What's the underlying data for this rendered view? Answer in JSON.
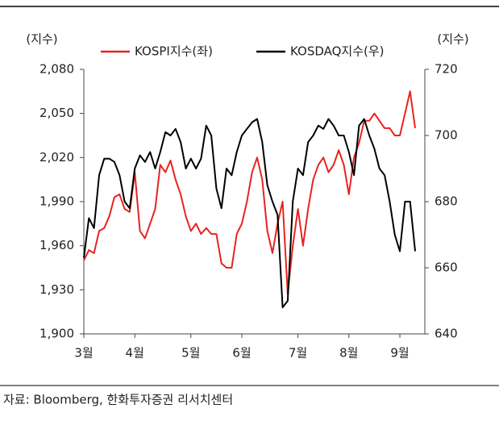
{
  "chart_data": {
    "type": "line",
    "y_label": "(지수)",
    "y2_label": "(지수)",
    "source": "자료: Bloomberg, 한화투자증권 리서치센터",
    "categories": [
      "3월",
      null,
      null,
      null,
      null,
      null,
      null,
      null,
      null,
      null,
      "4월",
      null,
      null,
      null,
      null,
      null,
      null,
      null,
      null,
      null,
      null,
      "5월",
      null,
      null,
      null,
      null,
      null,
      null,
      null,
      null,
      null,
      "6월",
      null,
      null,
      null,
      null,
      null,
      null,
      null,
      null,
      null,
      null,
      "7월",
      null,
      null,
      null,
      null,
      null,
      null,
      null,
      null,
      null,
      "8월",
      null,
      null,
      null,
      null,
      null,
      null,
      null,
      null,
      null,
      "9월",
      null,
      null,
      null
    ],
    "series": [
      {
        "name": "KOSPI지수(좌)",
        "color": "#e8231f",
        "axis": "y",
        "values": [
          1950,
          1957,
          1955,
          1970,
          1972,
          1980,
          1993,
          1995,
          1985,
          1983,
          2010,
          1970,
          1965,
          1975,
          1985,
          2015,
          2010,
          2018,
          2005,
          1995,
          1980,
          1970,
          1975,
          1968,
          1972,
          1968,
          1968,
          1948,
          1945,
          1945,
          1968,
          1975,
          1990,
          2010,
          2020,
          2005,
          1970,
          1955,
          1975,
          1990,
          1927,
          1960,
          1985,
          1960,
          1985,
          2005,
          2015,
          2020,
          2010,
          2015,
          2025,
          2015,
          1995,
          2020,
          2030,
          2045,
          2045,
          2050,
          2045,
          2040,
          2040,
          2035,
          2035,
          2050,
          2065,
          2040
        ]
      },
      {
        "name": "KOSDAQ지수(우)",
        "color": "#000000",
        "axis": "y2",
        "values": [
          663,
          675,
          672,
          688,
          693,
          693,
          692,
          688,
          680,
          678,
          690,
          694,
          692,
          695,
          690,
          695,
          701,
          700,
          702,
          698,
          690,
          693,
          690,
          693,
          703,
          700,
          684,
          678,
          690,
          688,
          695,
          700,
          702,
          704,
          705,
          698,
          685,
          680,
          676,
          648,
          650,
          680,
          690,
          688,
          698,
          700,
          703,
          702,
          705,
          703,
          700,
          700,
          695,
          688,
          703,
          705,
          700,
          696,
          690,
          688,
          680,
          670,
          665,
          680,
          680,
          665
        ]
      }
    ],
    "ylim": [
      1900,
      2080
    ],
    "yticks": [
      {
        "value": 1900,
        "label": "1,900"
      },
      {
        "value": 1930,
        "label": "1,930"
      },
      {
        "value": 1960,
        "label": "1,960"
      },
      {
        "value": 1990,
        "label": "1,990"
      },
      {
        "value": 2020,
        "label": "2,020"
      },
      {
        "value": 2050,
        "label": "2,050"
      },
      {
        "value": 2080,
        "label": "2,080"
      }
    ],
    "y2lim": [
      640,
      720
    ],
    "y2ticks": [
      640,
      660,
      680,
      700,
      720
    ],
    "legend": "top"
  }
}
